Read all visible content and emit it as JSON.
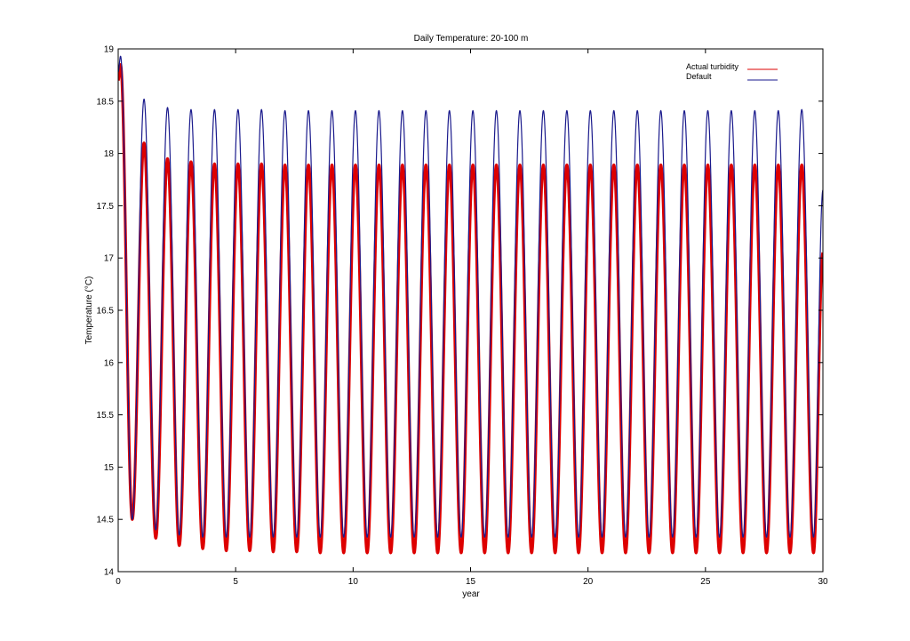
{
  "chart_data": {
    "type": "line",
    "title": "Daily Temperature: 20-100 m",
    "xlabel": "year",
    "ylabel": "Temperature (°C)",
    "xlim": [
      0,
      30
    ],
    "ylim": [
      14,
      19
    ],
    "xticks": [
      0,
      5,
      10,
      15,
      20,
      25,
      30
    ],
    "yticks": [
      14,
      14.5,
      15,
      15.5,
      16,
      16.5,
      17,
      17.5,
      18,
      18.5,
      19
    ],
    "ytick_labels": [
      "14",
      "14.5",
      "15",
      "15.5",
      "16",
      "16.5",
      "17",
      "17.5",
      "18",
      "18.5",
      "19"
    ],
    "grid": false,
    "legend_position": "top-right",
    "series": [
      {
        "name": "Actual turbidity",
        "color": "#dd0000",
        "period_years": 1.0,
        "phase_years": 0.1,
        "peaks": [
          18.85,
          18.1,
          17.95,
          17.92,
          17.9,
          17.9,
          17.9,
          17.89,
          17.89,
          17.89,
          17.89,
          17.89,
          17.89,
          17.89,
          17.89,
          17.89,
          17.89,
          17.89,
          17.89,
          17.89,
          17.89,
          17.89,
          17.89,
          17.89,
          17.89,
          17.89,
          17.89,
          17.89,
          17.89,
          17.89
        ],
        "troughs": [
          14.5,
          14.32,
          14.25,
          14.22,
          14.2,
          14.2,
          14.19,
          14.19,
          14.18,
          14.18,
          14.18,
          14.18,
          14.18,
          14.18,
          14.18,
          14.18,
          14.18,
          14.18,
          14.18,
          14.18,
          14.18,
          14.18,
          14.18,
          14.18,
          14.18,
          14.18,
          14.18,
          14.18,
          14.18,
          14.18
        ],
        "end_value": 17.05
      },
      {
        "name": "Default",
        "color": "#1a1a8c",
        "period_years": 1.0,
        "phase_years": 0.1,
        "peaks": [
          18.93,
          18.52,
          18.44,
          18.42,
          18.42,
          18.42,
          18.42,
          18.41,
          18.41,
          18.41,
          18.41,
          18.41,
          18.41,
          18.41,
          18.41,
          18.41,
          18.41,
          18.41,
          18.41,
          18.41,
          18.41,
          18.41,
          18.41,
          18.41,
          18.41,
          18.41,
          18.41,
          18.41,
          18.41,
          18.42
        ],
        "troughs": [
          14.5,
          14.4,
          14.35,
          14.33,
          14.33,
          14.33,
          14.33,
          14.33,
          14.33,
          14.33,
          14.33,
          14.33,
          14.33,
          14.33,
          14.33,
          14.33,
          14.33,
          14.33,
          14.33,
          14.33,
          14.33,
          14.33,
          14.33,
          14.33,
          14.33,
          14.33,
          14.33,
          14.33,
          14.33,
          14.33
        ],
        "end_value": 17.65
      }
    ]
  }
}
